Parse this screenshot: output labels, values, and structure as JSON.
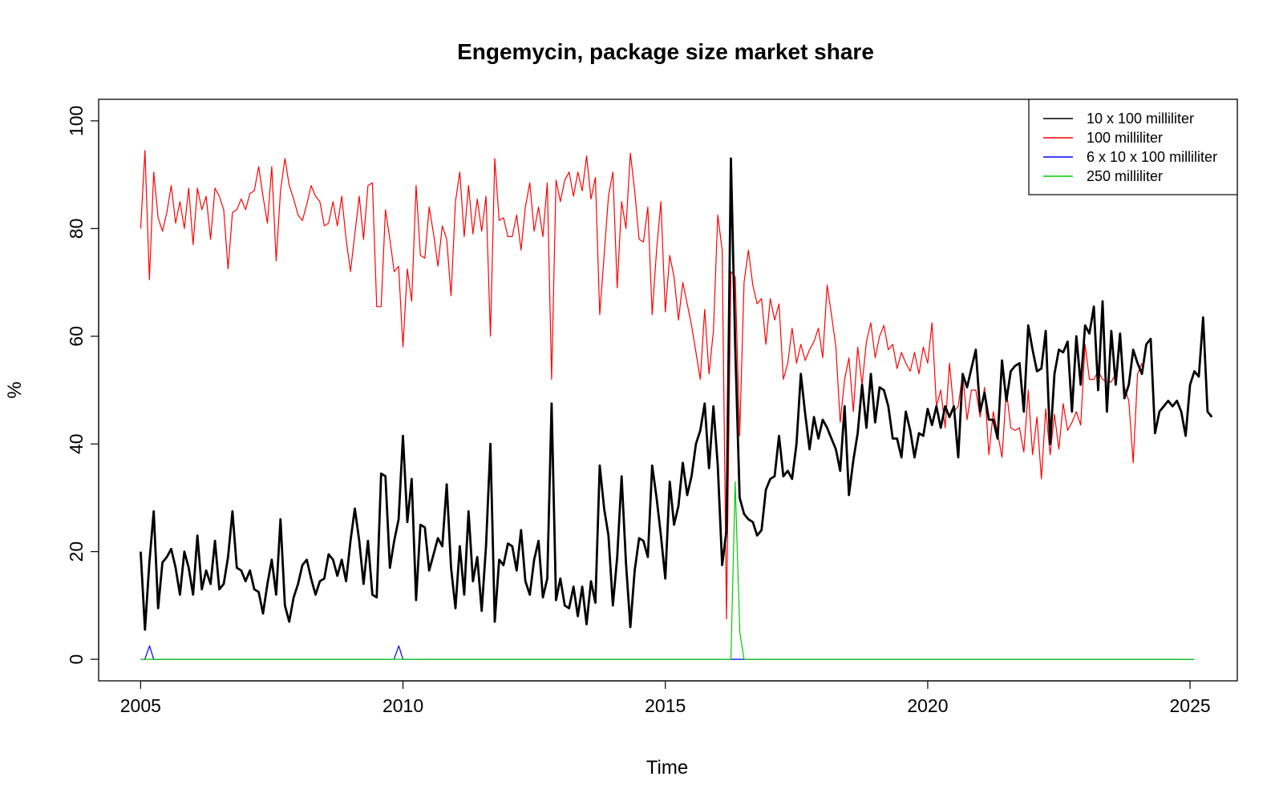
{
  "chart_data": {
    "type": "line",
    "title": "Engemycin, package size market share",
    "xlabel": "Time",
    "ylabel": "%",
    "xlim": [
      2004.2,
      2025.9
    ],
    "ylim": [
      -4,
      104
    ],
    "x_ticks": [
      2005,
      2010,
      2015,
      2020,
      2025
    ],
    "y_ticks": [
      0,
      20,
      40,
      60,
      80,
      100
    ],
    "legend_position": "top-right",
    "series": [
      {
        "name": "10 x 100 milliliter",
        "color": "#000000",
        "x_start": 2005.0,
        "x_step": 0.08333,
        "values": [
          20,
          5.5,
          18,
          27.5,
          9.5,
          18,
          19,
          20.5,
          17,
          12,
          20,
          17,
          12,
          23,
          13,
          16.5,
          14,
          22,
          13,
          14,
          19,
          27.5,
          17,
          16.5,
          14.5,
          16.5,
          13,
          12.5,
          8.5,
          14,
          18.5,
          12,
          26,
          10,
          7,
          11.5,
          14,
          17.5,
          18.5,
          15,
          12,
          14.5,
          15,
          19.5,
          18.5,
          15.5,
          18.5,
          14.5,
          22,
          28,
          22,
          14,
          22,
          12,
          11.5,
          34.5,
          34,
          17,
          22,
          26,
          41.5,
          25.5,
          33.5,
          11,
          25,
          24.5,
          16.5,
          19.5,
          22.5,
          21,
          32.5,
          17,
          9.5,
          21,
          12,
          27.5,
          14.5,
          19,
          9,
          21,
          40,
          7,
          18.5,
          17.5,
          21.5,
          21,
          16.5,
          24,
          14.5,
          12,
          18.5,
          22,
          11.5,
          15,
          47.5,
          11,
          15,
          10,
          9.5,
          13.5,
          8,
          13.5,
          6.5,
          14.5,
          10.5,
          36,
          28,
          23,
          10,
          19,
          34,
          18,
          6,
          16.5,
          22.5,
          22,
          19,
          36,
          30,
          23,
          15,
          33,
          25,
          28.5,
          36.5,
          30.5,
          34,
          40,
          42.5,
          47.5,
          35.5,
          47,
          36,
          17.5,
          24,
          93,
          58,
          30,
          27,
          26,
          25.5,
          23,
          24,
          31.5,
          33.5,
          34,
          41.5,
          34,
          35,
          33.5,
          40,
          53,
          45.5,
          39,
          45,
          41,
          44.5,
          43,
          41,
          39,
          35,
          47,
          30.5,
          37,
          42,
          51,
          43,
          53,
          44,
          50.5,
          50,
          47,
          41,
          41,
          37.5,
          46,
          42.5,
          37.5,
          42,
          41.5,
          46.5,
          43.5,
          47,
          43,
          47,
          45,
          47,
          37.5,
          53,
          50.5,
          54,
          57.5,
          46,
          49.5,
          44.5,
          44.5,
          41,
          55.5,
          48,
          53.5,
          54.5,
          55,
          46,
          62,
          57.5,
          53.5,
          54,
          61,
          40,
          53,
          57.5,
          57,
          59,
          46,
          60,
          51,
          62,
          60.5,
          65.5,
          50,
          66.5,
          46,
          61,
          51,
          60.5,
          48.5,
          51,
          57.5,
          55,
          53,
          58.5,
          59.5,
          42,
          46,
          47,
          48,
          47,
          48,
          46,
          41.5,
          51,
          53.5,
          52.5,
          63.5,
          46,
          45
        ]
      },
      {
        "name": "100 milliliter",
        "color": "#ff0000",
        "x_start": 2005.0,
        "x_step": 0.08333,
        "values": [
          80,
          94.5,
          70.5,
          90.5,
          82,
          79.5,
          83,
          88,
          81,
          85,
          80,
          87.5,
          77,
          87.5,
          83.5,
          86,
          78,
          87.5,
          86,
          83.5,
          72.5,
          83,
          83.5,
          85.5,
          83.5,
          86.5,
          87,
          91.5,
          86,
          81,
          91.5,
          74,
          87,
          93,
          88,
          85.5,
          82.5,
          81.5,
          84.5,
          88,
          86,
          85,
          80.5,
          81,
          85,
          80.5,
          86,
          78,
          72,
          79,
          86,
          78,
          88,
          88.5,
          65.5,
          65.5,
          83.5,
          78,
          72,
          73,
          58,
          72.5,
          66.5,
          88,
          75,
          74.5,
          84,
          79,
          73,
          80.5,
          78,
          67.5,
          85,
          90.5,
          78.5,
          88,
          79,
          85.5,
          79.5,
          86,
          60,
          93,
          81.5,
          82,
          78.5,
          78.5,
          82.5,
          76,
          84,
          88.5,
          79.5,
          84,
          78.5,
          88.5,
          52,
          89,
          85,
          89,
          90.5,
          86,
          90.5,
          87,
          93.5,
          85.5,
          89.5,
          64,
          75,
          86,
          90.5,
          69,
          85,
          80,
          94,
          87,
          78,
          77.5,
          84,
          64,
          76,
          85,
          64.5,
          75,
          71,
          63,
          70,
          66,
          62,
          57,
          52,
          65,
          53,
          61,
          82.5,
          76,
          7.5,
          72,
          71,
          41.5,
          70,
          76,
          69.5,
          66,
          67,
          58.5,
          67,
          63,
          66,
          52,
          55,
          61.5,
          55,
          58.5,
          55.5,
          57.5,
          59,
          61.5,
          56,
          69.5,
          64,
          58,
          44,
          52,
          56,
          46,
          58,
          51,
          59,
          62.5,
          56,
          60,
          62,
          57.5,
          58.5,
          54,
          57,
          55,
          53.5,
          57,
          53,
          58,
          55,
          62.5,
          47,
          50,
          43,
          55,
          46,
          47,
          53,
          44.5,
          50,
          50,
          45,
          50.5,
          38,
          46,
          42,
          37.5,
          50,
          43,
          42.5,
          43,
          38.5,
          50,
          38,
          45,
          33.5,
          46.5,
          38,
          45.5,
          39,
          47.5,
          42.5,
          44,
          46,
          43.5,
          58.5,
          52,
          52,
          53.5,
          52,
          51.5,
          51.5,
          53,
          58,
          50.5,
          48,
          36.5,
          53,
          55
        ]
      },
      {
        "name": "6 x 10 x 100 milliliter",
        "color": "#0000ff",
        "x_points": [
          2005.0,
          2005.08,
          2005.17,
          2005.25,
          2009.75,
          2009.83,
          2009.92,
          2010.0,
          2016.0,
          2016.08,
          2016.17,
          2016.25,
          2016.33,
          2016.42,
          2016.5,
          2025.08
        ],
        "values": [
          0,
          0,
          2.5,
          0,
          0,
          0,
          2.5,
          0,
          0,
          0,
          0,
          0,
          0,
          0,
          0,
          0
        ]
      },
      {
        "name": "250 milliliter",
        "color": "#00cc00",
        "x_points": [
          2005.0,
          2016.0,
          2016.08,
          2016.17,
          2016.25,
          2016.33,
          2016.42,
          2016.5,
          2025.08
        ],
        "values": [
          0,
          0,
          0,
          0,
          0,
          33,
          5,
          0,
          0
        ]
      }
    ]
  }
}
